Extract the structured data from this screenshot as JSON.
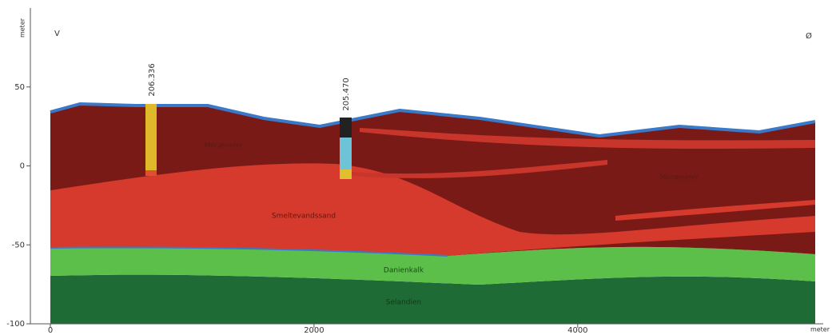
{
  "axes": {
    "y_label": "meter",
    "x_label": "meter",
    "xlim": [
      0,
      5850
    ],
    "ylim": [
      -100,
      100
    ],
    "xticks": [
      0,
      2000,
      4000
    ],
    "yticks": [
      50,
      0,
      -50,
      -100
    ]
  },
  "corner_labels": {
    "left": "V",
    "right": "Ø"
  },
  "boreholes": [
    {
      "label": "206.336"
    },
    {
      "label": "205.470"
    }
  ],
  "layers": [
    {
      "label": "Moræneler"
    },
    {
      "label": "Smeltevandssand"
    },
    {
      "label": "Moræneler"
    },
    {
      "label": "Danienkalk"
    },
    {
      "label": "Selandien"
    }
  ]
}
